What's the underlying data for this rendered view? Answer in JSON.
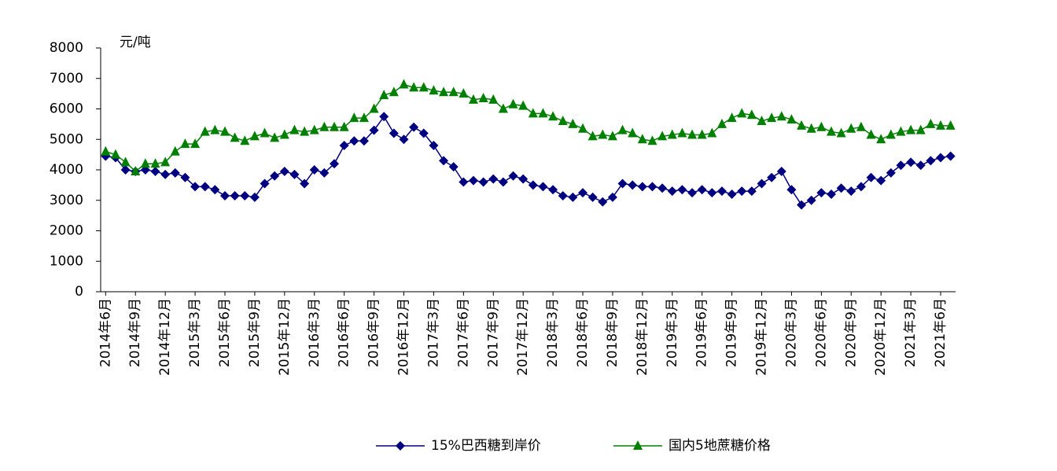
{
  "chart_data": {
    "type": "line",
    "y_label": "元/吨",
    "categories": [
      "2014年6月",
      null,
      null,
      "2014年9月",
      null,
      null,
      "2014年12月",
      null,
      null,
      "2015年3月",
      null,
      null,
      "2015年6月",
      null,
      null,
      "2015年9月",
      null,
      null,
      "2015年12月",
      null,
      null,
      "2016年3月",
      null,
      null,
      "2016年6月",
      null,
      null,
      "2016年9月",
      null,
      null,
      "2016年12月",
      null,
      null,
      "2017年3月",
      null,
      null,
      "2017年6月",
      null,
      null,
      "2017年9月",
      null,
      null,
      "2017年12月",
      null,
      null,
      "2018年3月",
      null,
      null,
      "2018年6月",
      null,
      null,
      "2018年9月",
      null,
      null,
      "2018年12月",
      null,
      null,
      "2019年3月",
      null,
      null,
      "2019年6月",
      null,
      null,
      "2019年9月",
      null,
      null,
      "2019年12月",
      null,
      null,
      "2020年3月",
      null,
      null,
      "2020年6月",
      null,
      null,
      "2020年9月",
      null,
      null,
      "2020年12月",
      null,
      null,
      "2021年3月",
      null,
      null,
      "2021年6月",
      null
    ],
    "series": [
      {
        "name": "15%巴西糖到岸价",
        "color": "#000080",
        "marker": "diamond",
        "values": [
          4450,
          4400,
          4000,
          3950,
          4000,
          3950,
          3850,
          3900,
          3750,
          3450,
          3450,
          3350,
          3150,
          3150,
          3150,
          3100,
          3550,
          3800,
          3950,
          3850,
          3550,
          4000,
          3900,
          4200,
          4800,
          4950,
          4950,
          5300,
          5750,
          5200,
          5000,
          5400,
          5200,
          4800,
          4300,
          4100,
          3600,
          3650,
          3600,
          3700,
          3600,
          3800,
          3700,
          3500,
          3450,
          3350,
          3150,
          3100,
          3250,
          3100,
          2950,
          3100,
          3550,
          3500,
          3450,
          3450,
          3400,
          3300,
          3350,
          3250,
          3350,
          3250,
          3300,
          3200,
          3300,
          3300,
          3550,
          3750,
          3950,
          3350,
          2850,
          3000,
          3250,
          3200,
          3400,
          3300,
          3450,
          3750,
          3650,
          3900,
          4150,
          4250,
          4150,
          4300,
          4400,
          4450
        ]
      },
      {
        "name": "国内5地蔗糖价格",
        "color": "#008000",
        "marker": "triangle",
        "values": [
          4600,
          4500,
          4250,
          3950,
          4200,
          4200,
          4250,
          4600,
          4850,
          4850,
          5250,
          5300,
          5250,
          5050,
          4950,
          5100,
          5200,
          5050,
          5150,
          5300,
          5250,
          5300,
          5400,
          5400,
          5400,
          5700,
          5700,
          6000,
          6450,
          6550,
          6800,
          6700,
          6700,
          6600,
          6550,
          6550,
          6500,
          6300,
          6350,
          6300,
          6000,
          6150,
          6100,
          5850,
          5850,
          5750,
          5600,
          5500,
          5350,
          5100,
          5150,
          5100,
          5300,
          5200,
          5000,
          4950,
          5100,
          5150,
          5200,
          5150,
          5150,
          5200,
          5500,
          5700,
          5850,
          5800,
          5600,
          5700,
          5750,
          5650,
          5450,
          5350,
          5400,
          5250,
          5200,
          5350,
          5400,
          5150,
          5000,
          5150,
          5250,
          5300,
          5300,
          5500,
          5450,
          5450
        ]
      }
    ],
    "ylim": [
      0,
      8000
    ],
    "yticks": [
      0,
      1000,
      2000,
      3000,
      4000,
      5000,
      6000,
      7000,
      8000
    ],
    "grid": false,
    "legend": "bottom"
  }
}
